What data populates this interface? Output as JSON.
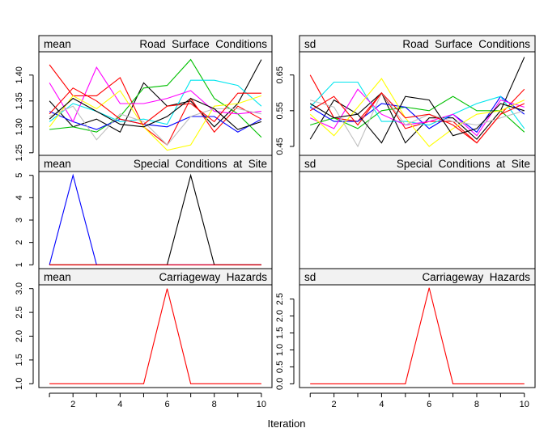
{
  "chart_data": {
    "type": "line",
    "xlabel": "Iteration",
    "x": [
      1,
      2,
      3,
      4,
      5,
      6,
      7,
      8,
      9,
      10
    ],
    "x_ticks": [
      2,
      4,
      6,
      8,
      10
    ],
    "palette": [
      "#000000",
      "#ff0000",
      "#00c000",
      "#0000ff",
      "#00e5ee",
      "#ff00ff",
      "#ffff00",
      "#bebebe"
    ],
    "panels": [
      {
        "id": "mean-road",
        "row": 0,
        "col": 0,
        "stat": "mean",
        "variable": "Road Surface Conditions",
        "ylim": [
          1.245,
          1.445
        ],
        "y_ticks": [
          {
            "v": 1.25,
            "label": "1.25"
          },
          {
            "v": 1.3,
            "label": "1.30"
          },
          {
            "v": 1.35,
            "label": "1.35"
          },
          {
            "v": 1.4,
            "label": "1.40"
          }
        ],
        "series": [
          {
            "color": "#000000",
            "values": [
              1.35,
              1.3,
              1.315,
              1.29,
              1.385,
              1.34,
              1.35,
              1.3,
              1.345,
              1.43
            ]
          },
          {
            "color": "#ff0000",
            "values": [
              1.42,
              1.36,
              1.36,
              1.395,
              1.3,
              1.265,
              1.355,
              1.29,
              1.34,
              1.315
            ]
          },
          {
            "color": "#00c000",
            "values": [
              1.295,
              1.3,
              1.29,
              1.32,
              1.375,
              1.38,
              1.43,
              1.355,
              1.325,
              1.28
            ]
          },
          {
            "color": "#0000ff",
            "values": [
              1.33,
              1.31,
              1.295,
              1.315,
              1.305,
              1.3,
              1.32,
              1.32,
              1.29,
              1.315
            ]
          },
          {
            "color": "#00e5ee",
            "values": [
              1.31,
              1.345,
              1.33,
              1.31,
              1.315,
              1.305,
              1.39,
              1.39,
              1.38,
              1.34
            ]
          },
          {
            "color": "#ff00ff",
            "values": [
              1.385,
              1.31,
              1.415,
              1.345,
              1.345,
              1.355,
              1.37,
              1.33,
              1.325,
              1.33
            ]
          },
          {
            "color": "#ffff00",
            "values": [
              1.3,
              1.36,
              1.335,
              1.37,
              1.3,
              1.255,
              1.265,
              1.34,
              1.345,
              1.36
            ]
          },
          {
            "color": "#bebebe",
            "values": [
              1.32,
              1.34,
              1.275,
              1.325,
              1.31,
              1.265,
              1.32,
              1.335,
              1.335,
              1.325
            ]
          },
          {
            "color": "#ff0000",
            "values": [
              1.325,
              1.375,
              1.35,
              1.315,
              1.305,
              1.34,
              1.345,
              1.31,
              1.365,
              1.365
            ]
          },
          {
            "color": "#000000",
            "values": [
              1.315,
              1.355,
              1.33,
              1.305,
              1.3,
              1.32,
              1.355,
              1.335,
              1.295,
              1.31
            ]
          }
        ]
      },
      {
        "id": "sd-road",
        "row": 0,
        "col": 1,
        "stat": "sd",
        "variable": "Road Surface Conditions",
        "ylim": [
          0.425,
          0.715
        ],
        "y_ticks": [
          {
            "v": 0.45,
            "label": "0.45"
          },
          {
            "v": 0.55,
            "label": "0.55"
          },
          {
            "v": 0.65,
            "label": "0.65"
          }
        ],
        "series": [
          {
            "color": "#000000",
            "values": [
              0.47,
              0.58,
              0.54,
              0.6,
              0.46,
              0.53,
              0.53,
              0.47,
              0.55,
              0.7
            ]
          },
          {
            "color": "#ff0000",
            "values": [
              0.65,
              0.53,
              0.52,
              0.6,
              0.5,
              0.52,
              0.52,
              0.46,
              0.54,
              0.61
            ]
          },
          {
            "color": "#00c000",
            "values": [
              0.51,
              0.53,
              0.5,
              0.55,
              0.56,
              0.55,
              0.59,
              0.55,
              0.55,
              0.49
            ]
          },
          {
            "color": "#0000ff",
            "values": [
              0.56,
              0.52,
              0.52,
              0.57,
              0.56,
              0.5,
              0.54,
              0.49,
              0.59,
              0.54
            ]
          },
          {
            "color": "#00e5ee",
            "values": [
              0.56,
              0.63,
              0.63,
              0.52,
              0.52,
              0.51,
              0.54,
              0.57,
              0.59,
              0.5
            ]
          },
          {
            "color": "#ff00ff",
            "values": [
              0.53,
              0.5,
              0.61,
              0.54,
              0.51,
              0.52,
              0.54,
              0.48,
              0.58,
              0.56
            ]
          },
          {
            "color": "#ffff00",
            "values": [
              0.54,
              0.48,
              0.56,
              0.64,
              0.53,
              0.45,
              0.5,
              0.54,
              0.55,
              0.58
            ]
          },
          {
            "color": "#bebebe",
            "values": [
              0.58,
              0.56,
              0.45,
              0.6,
              0.51,
              0.54,
              0.52,
              0.51,
              0.53,
              0.55
            ]
          },
          {
            "color": "#ff0000",
            "values": [
              0.55,
              0.59,
              0.51,
              0.6,
              0.53,
              0.54,
              0.51,
              0.46,
              0.54,
              0.57
            ]
          },
          {
            "color": "#000000",
            "values": [
              0.57,
              0.53,
              0.54,
              0.46,
              0.59,
              0.58,
              0.48,
              0.5,
              0.57,
              0.55
            ]
          }
        ]
      },
      {
        "id": "mean-special",
        "row": 1,
        "col": 0,
        "stat": "mean",
        "variable": "Special Conditions at Site",
        "ylim": [
          0.83,
          5.17
        ],
        "y_ticks": [
          {
            "v": 1,
            "label": "1"
          },
          {
            "v": 2,
            "label": "2"
          },
          {
            "v": 3,
            "label": "3"
          },
          {
            "v": 4,
            "label": "4"
          },
          {
            "v": 5,
            "label": "5"
          }
        ],
        "series": [
          {
            "color": "#0000ff",
            "values": [
              1,
              5,
              1,
              1,
              1,
              1,
              1,
              1,
              1,
              1
            ]
          },
          {
            "color": "#000000",
            "values": [
              1,
              1,
              1,
              1,
              1,
              1,
              5,
              1,
              1,
              1
            ]
          },
          {
            "color": "#ff0000",
            "values": [
              1,
              1,
              1,
              1,
              1,
              1,
              1,
              1,
              1,
              1
            ]
          }
        ]
      },
      {
        "id": "sd-special",
        "row": 1,
        "col": 1,
        "stat": "sd",
        "variable": "Special Conditions at Site",
        "ylim": [
          0,
          1
        ],
        "y_ticks": [],
        "series": []
      },
      {
        "id": "mean-carriageway",
        "row": 2,
        "col": 0,
        "stat": "mean",
        "variable": "Carriageway Hazards",
        "ylim": [
          0.92,
          3.08
        ],
        "y_ticks": [
          {
            "v": 1.0,
            "label": "1.0"
          },
          {
            "v": 1.5,
            "label": "1.5"
          },
          {
            "v": 2.0,
            "label": "2.0"
          },
          {
            "v": 2.5,
            "label": "2.5"
          },
          {
            "v": 3.0,
            "label": "3.0"
          }
        ],
        "series": [
          {
            "color": "#ff0000",
            "values": [
              1,
              1,
              1,
              1,
              1,
              3,
              1,
              1,
              1,
              1
            ]
          }
        ]
      },
      {
        "id": "sd-carriageway",
        "row": 2,
        "col": 1,
        "stat": "sd",
        "variable": "Carriageway Hazards",
        "ylim": [
          -0.11,
          2.92
        ],
        "y_ticks": [
          {
            "v": 0.0,
            "label": "0.0"
          },
          {
            "v": 0.5,
            "label": "0.5"
          },
          {
            "v": 1.0,
            "label": "1.0"
          },
          {
            "v": 1.5,
            "label": "1.5"
          },
          {
            "v": 2.0,
            "label": "2.0"
          },
          {
            "v": 2.5,
            "label": "2.5"
          }
        ],
        "series": [
          {
            "color": "#ff0000",
            "values": [
              0,
              0,
              0,
              0,
              0,
              2.83,
              0,
              0,
              0,
              0
            ]
          }
        ]
      }
    ]
  }
}
